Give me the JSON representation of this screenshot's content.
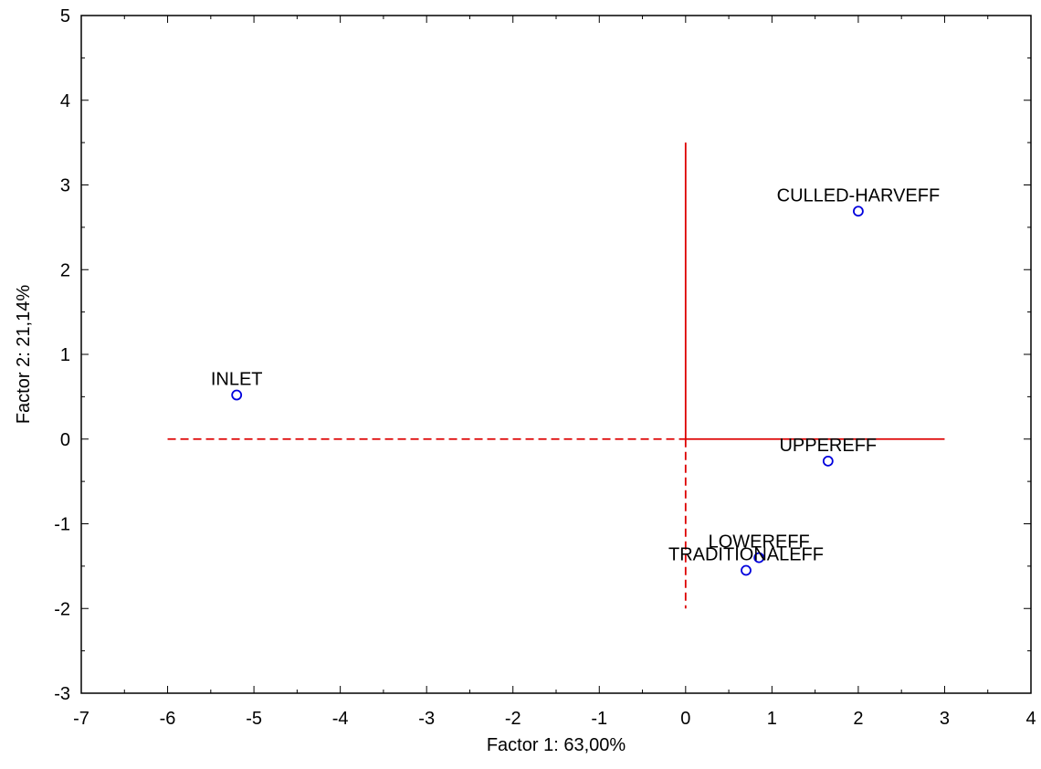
{
  "chart_data": {
    "type": "scatter",
    "title": "",
    "xlabel": "Factor 1: 63,00%",
    "ylabel": "Factor 2: 21,14%",
    "xlim": [
      -7,
      4
    ],
    "ylim": [
      -3,
      5
    ],
    "xticks": [
      -7,
      -6,
      -5,
      -4,
      -3,
      -2,
      -1,
      0,
      1,
      2,
      3,
      4
    ],
    "yticks": [
      -3,
      -2,
      -1,
      0,
      1,
      2,
      3,
      4,
      5
    ],
    "grid": false,
    "points": [
      {
        "label": "INLET",
        "x": -5.2,
        "y": 0.52
      },
      {
        "label": "CULLED-HARVEFF",
        "x": 2.0,
        "y": 2.69
      },
      {
        "label": "UPPEREFF",
        "x": 1.65,
        "y": -0.26
      },
      {
        "label": "LOWEREFF",
        "x": 0.85,
        "y": -1.4
      },
      {
        "label": "TRADITIONALEFF",
        "x": 0.7,
        "y": -1.55
      }
    ],
    "reference_lines": {
      "color": "#dd0000",
      "solid": [
        {
          "from": [
            0,
            0
          ],
          "to": [
            0,
            3.5
          ]
        },
        {
          "from": [
            0,
            0
          ],
          "to": [
            3,
            0
          ]
        }
      ],
      "dashed": [
        {
          "from": [
            -6,
            0
          ],
          "to": [
            0,
            0
          ]
        },
        {
          "from": [
            0,
            0
          ],
          "to": [
            0,
            -2
          ]
        }
      ]
    },
    "colors": {
      "points": "#0000dd",
      "reference": "#dd0000",
      "axis": "#000000"
    }
  }
}
